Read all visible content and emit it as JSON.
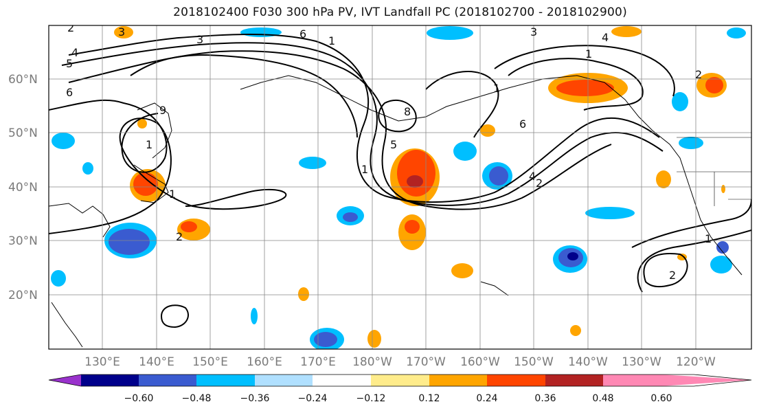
{
  "title": "2018102400 F030 300 hPa PV, IVT Landfall PC (2018102700 - 2018102900)",
  "lat_labels": [
    "60°N",
    "50°N",
    "40°N",
    "30°N",
    "20°N"
  ],
  "lon_labels": [
    "130°E",
    "140°E",
    "150°E",
    "160°E",
    "170°E",
    "180°W",
    "170°W",
    "160°W",
    "150°W",
    "140°W",
    "130°W",
    "120°W"
  ],
  "colorbar": {
    "ticks": [
      "−0.60",
      "−0.48",
      "−0.36",
      "−0.24",
      "−0.12",
      "0.12",
      "0.24",
      "0.36",
      "0.48",
      "0.60"
    ],
    "colors": [
      "#9932cc",
      "#00008b",
      "#3a5bd0",
      "#00bfff",
      "#b0e0ff",
      "#ffffff",
      "#ffec8b",
      "#ffa500",
      "#ff4500",
      "#b22222",
      "#ff88b4"
    ]
  },
  "contour_labels": [
    "3",
    "6",
    "1",
    "3",
    "4",
    "3",
    "4",
    "5",
    "6",
    "8",
    "1",
    "2",
    "9",
    "5",
    "1",
    "6",
    "1",
    "4",
    "1",
    "2",
    "2",
    "1",
    "2",
    "1",
    "2"
  ],
  "chart_data": {
    "type": "map",
    "projection": "cylindrical",
    "lon_range": [
      "120°E",
      "115°W"
    ],
    "lat_range": [
      10,
      70
    ],
    "grid": true,
    "contour_field": "300 hPa PV (black contours, levels 1-9)",
    "shaded_field": "IVT Landfall PC (color fill)",
    "colorbar_levels": [
      -0.6,
      -0.48,
      -0.36,
      -0.24,
      -0.12,
      0.12,
      0.24,
      0.36,
      0.48,
      0.6
    ]
  }
}
